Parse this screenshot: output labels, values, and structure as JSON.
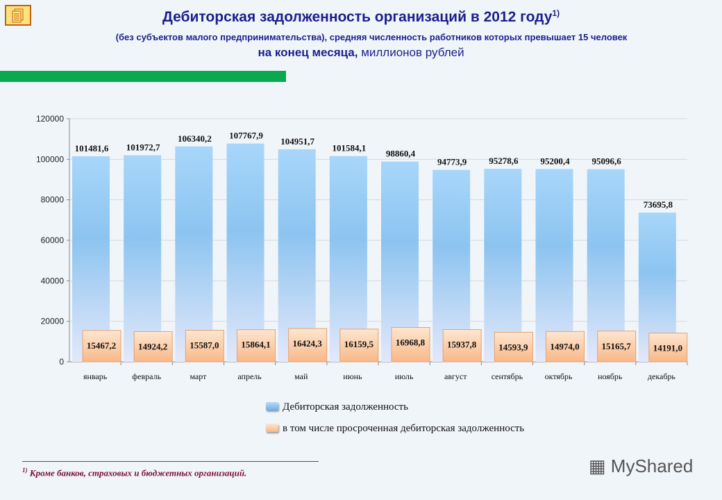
{
  "header": {
    "title": "Дебиторская задолженность организаций в 2012 году",
    "title_note": "1)",
    "subtitle1": "(без субъектов малого предпринимательства), средняя численность работников которых превышает 15 человек",
    "subtitle2_bold": "на конец месяца,",
    "subtitle2_rest": " миллионов рублей"
  },
  "chart_data": {
    "type": "bar",
    "categories": [
      "январь",
      "февраль",
      "март",
      "апрель",
      "май",
      "июнь",
      "июль",
      "август",
      "сентябрь",
      "октябрь",
      "ноябрь",
      "декабрь"
    ],
    "series": [
      {
        "name": "Дебиторская задолженность",
        "color": "#8cc4f0",
        "values": [
          101481.6,
          101972.7,
          106340.2,
          107767.9,
          104951.7,
          101584.1,
          98860.4,
          94773.9,
          95278.6,
          95200.4,
          95096.6,
          73695.8
        ],
        "labels": [
          "101481,6",
          "101972,7",
          "106340,2",
          "107767,9",
          "104951,7",
          "101584,1",
          "98860,4",
          "94773,9",
          "95278,6",
          "95200,4",
          "95096,6",
          "73695,8"
        ]
      },
      {
        "name": "в том числе просроченная дебиторская задолженность",
        "color": "#fcd0a8",
        "values": [
          15467.2,
          14924.2,
          15587.0,
          15864.1,
          16424.3,
          16159.5,
          16968.8,
          15937.8,
          14593.9,
          14974.0,
          15165.7,
          14191.0
        ],
        "labels": [
          "15467,2",
          "14924,2",
          "15587,0",
          "15864,1",
          "16424,3",
          "16159,5",
          "16968,8",
          "15937,8",
          "14593,9",
          "14974,0",
          "15165,7",
          "14191,0"
        ]
      }
    ],
    "yticks": [
      "0",
      "20000",
      "40000",
      "60000",
      "80000",
      "100000",
      "120000"
    ],
    "ylim": [
      0,
      120000
    ],
    "grid": true,
    "legend": "bottom"
  },
  "footnote": {
    "mark": "1)",
    "text": " Кроме банков, страховых и бюджетных организаций."
  },
  "watermark": "MyShared"
}
